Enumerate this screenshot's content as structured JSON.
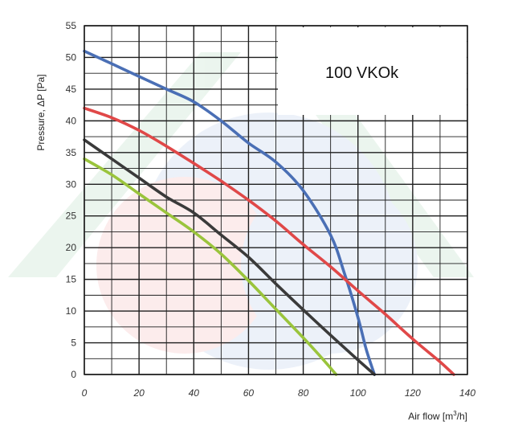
{
  "chart_data": {
    "type": "line",
    "title": "100 VKOk",
    "xlabel": "Air flow [m",
    "xlabel_sup": "3",
    "xlabel_end": "/h]",
    "ylabel": "Pressure, ΔP [Pa]",
    "xlim": [
      0,
      140
    ],
    "ylim": [
      0,
      55
    ],
    "x_ticks": [
      0,
      20,
      40,
      60,
      80,
      100,
      120,
      140
    ],
    "y_ticks": [
      0,
      5,
      10,
      15,
      20,
      25,
      30,
      35,
      40,
      45,
      50,
      55
    ],
    "grid": true,
    "series": [
      {
        "color": "#4a6fb5",
        "x": [
          0,
          10,
          20,
          30,
          40,
          50,
          60,
          70,
          80,
          90,
          95,
          100,
          103,
          106
        ],
        "y": [
          51,
          49,
          47,
          45,
          43,
          40,
          36.5,
          33.5,
          29,
          22,
          16,
          9,
          4,
          0
        ]
      },
      {
        "color": "#e04848",
        "x": [
          0,
          10,
          20,
          30,
          40,
          50,
          60,
          70,
          80,
          90,
          100,
          110,
          120,
          130,
          135
        ],
        "y": [
          42,
          40.5,
          38.5,
          36,
          33.3,
          30.5,
          27.5,
          24.2,
          20.5,
          17,
          13.2,
          9.5,
          5.6,
          2,
          0
        ]
      },
      {
        "color": "#3a3a3a",
        "x": [
          0,
          10,
          20,
          30,
          40,
          50,
          60,
          70,
          80,
          90,
          100,
          106
        ],
        "y": [
          37,
          34,
          31,
          28,
          25.5,
          22,
          18.5,
          14.3,
          10.2,
          6.2,
          2.3,
          0
        ]
      },
      {
        "color": "#9ac43c",
        "x": [
          0,
          10,
          20,
          30,
          40,
          50,
          60,
          70,
          80,
          87,
          92
        ],
        "y": [
          34,
          31.5,
          28.5,
          25.5,
          22.5,
          19,
          14.8,
          10.3,
          5.8,
          2.5,
          0
        ]
      }
    ]
  }
}
